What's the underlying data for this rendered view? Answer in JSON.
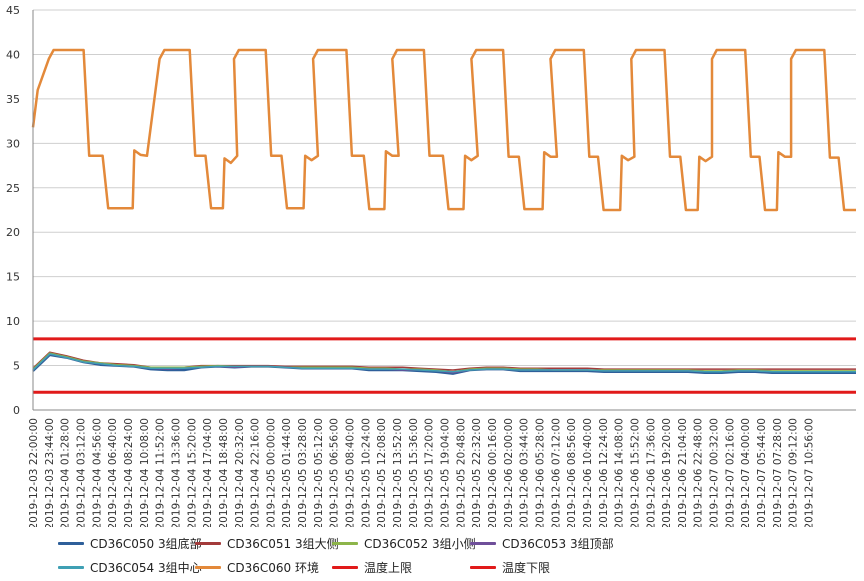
{
  "chart_data": {
    "type": "line",
    "title": "",
    "xlabel": "",
    "ylabel": "",
    "ylim": [
      0,
      45
    ],
    "yticks": [
      0,
      5,
      10,
      15,
      20,
      25,
      30,
      35,
      40,
      45
    ],
    "grid": true,
    "legend_position": "bottom",
    "x_tick_labels": [
      "2019-12-03 22:00:00",
      "2019-12-03 23:44:00",
      "2019-12-04 01:28:00",
      "2019-12-04 03:12:00",
      "2019-12-04 04:56:00",
      "2019-12-04 06:40:00",
      "2019-12-04 08:24:00",
      "2019-12-04 10:08:00",
      "2019-12-04 11:52:00",
      "2019-12-04 13:36:00",
      "2019-12-04 15:20:00",
      "2019-12-04 17:04:00",
      "2019-12-04 18:48:00",
      "2019-12-04 20:32:00",
      "2019-12-04 22:16:00",
      "2019-12-05 00:00:00",
      "2019-12-05 01:44:00",
      "2019-12-05 03:28:00",
      "2019-12-05 05:12:00",
      "2019-12-05 06:56:00",
      "2019-12-05 08:40:00",
      "2019-12-05 10:24:00",
      "2019-12-05 12:08:00",
      "2019-12-05 13:52:00",
      "2019-12-05 15:36:00",
      "2019-12-05 17:20:00",
      "2019-12-05 19:04:00",
      "2019-12-05 20:48:00",
      "2019-12-05 22:32:00",
      "2019-12-06 00:16:00",
      "2019-12-06 02:00:00",
      "2019-12-06 03:44:00",
      "2019-12-06 05:28:00",
      "2019-12-06 07:12:00",
      "2019-12-06 08:56:00",
      "2019-12-06 10:40:00",
      "2019-12-06 12:24:00",
      "2019-12-06 14:08:00",
      "2019-12-06 15:52:00",
      "2019-12-06 17:36:00",
      "2019-12-06 19:20:00",
      "2019-12-06 21:04:00",
      "2019-12-06 22:48:00",
      "2019-12-07 00:32:00",
      "2019-12-07 02:16:00",
      "2019-12-07 04:00:00",
      "2019-12-07 05:44:00",
      "2019-12-07 07:28:00",
      "2019-12-07 09:12:00",
      "2019-12-07 10:56:00"
    ],
    "series": [
      {
        "name": "CD36C050 3组底部",
        "color": "#2e5f9a",
        "width": 2.5,
        "values": [
          4.4,
          6.2,
          5.9,
          5.4,
          5.1,
          5.0,
          4.9,
          4.6,
          4.5,
          4.5,
          4.8,
          4.9,
          4.8,
          4.9,
          4.9,
          4.8,
          4.7,
          4.7,
          4.7,
          4.7,
          4.5,
          4.5,
          4.5,
          4.4,
          4.3,
          4.1,
          4.5,
          4.6,
          4.6,
          4.4,
          4.4,
          4.4,
          4.4,
          4.4,
          4.3,
          4.3,
          4.3,
          4.3,
          4.3,
          4.3,
          4.2,
          4.2,
          4.3,
          4.3,
          4.2,
          4.2,
          4.2,
          4.2,
          4.2,
          4.2
        ]
      },
      {
        "name": "CD36C051 3组大侧",
        "color": "#a33b3b",
        "width": 1.5,
        "values": [
          4.7,
          6.5,
          6.1,
          5.6,
          5.3,
          5.2,
          5.1,
          4.8,
          4.7,
          4.8,
          5.0,
          5.0,
          5.0,
          5.0,
          5.0,
          4.9,
          4.9,
          4.9,
          4.9,
          4.9,
          4.8,
          4.8,
          4.8,
          4.7,
          4.6,
          4.5,
          4.7,
          4.8,
          4.8,
          4.7,
          4.7,
          4.7,
          4.7,
          4.7,
          4.6,
          4.6,
          4.6,
          4.6,
          4.6,
          4.6,
          4.6,
          4.6,
          4.6,
          4.6,
          4.6,
          4.6,
          4.6,
          4.6,
          4.6,
          4.6
        ]
      },
      {
        "name": "CD36C052 3组小侧",
        "color": "#8db54a",
        "width": 1.5,
        "values": [
          4.6,
          6.4,
          6.0,
          5.5,
          5.3,
          5.1,
          5.0,
          4.8,
          4.8,
          4.8,
          4.9,
          5.0,
          4.9,
          4.9,
          4.9,
          4.8,
          4.8,
          4.8,
          4.8,
          4.8,
          4.7,
          4.7,
          4.6,
          4.6,
          4.5,
          4.3,
          4.6,
          4.7,
          4.7,
          4.6,
          4.6,
          4.5,
          4.5,
          4.5,
          4.5,
          4.5,
          4.5,
          4.5,
          4.5,
          4.5,
          4.4,
          4.4,
          4.5,
          4.5,
          4.4,
          4.4,
          4.4,
          4.4,
          4.4,
          4.4
        ]
      },
      {
        "name": "CD36C053 3组顶部",
        "color": "#6f4f9a",
        "width": 1.5,
        "values": [
          4.5,
          6.3,
          5.9,
          5.4,
          5.2,
          5.0,
          4.9,
          4.7,
          4.6,
          4.7,
          4.8,
          4.9,
          4.8,
          4.9,
          4.9,
          4.8,
          4.7,
          4.7,
          4.7,
          4.7,
          4.6,
          4.6,
          4.5,
          4.5,
          4.4,
          4.2,
          4.5,
          4.6,
          4.6,
          4.5,
          4.5,
          4.5,
          4.5,
          4.5,
          4.4,
          4.4,
          4.4,
          4.4,
          4.4,
          4.4,
          4.3,
          4.3,
          4.4,
          4.4,
          4.3,
          4.3,
          4.3,
          4.3,
          4.3,
          4.3
        ]
      },
      {
        "name": "CD36C054 3组中心",
        "color": "#3fa0b4",
        "width": 1.5,
        "values": [
          4.5,
          6.3,
          5.9,
          5.4,
          5.2,
          5.0,
          4.9,
          4.7,
          4.7,
          4.7,
          4.8,
          4.9,
          4.9,
          4.9,
          4.9,
          4.8,
          4.7,
          4.7,
          4.7,
          4.7,
          4.6,
          4.6,
          4.6,
          4.5,
          4.4,
          4.3,
          4.5,
          4.6,
          4.6,
          4.5,
          4.5,
          4.5,
          4.5,
          4.5,
          4.4,
          4.4,
          4.4,
          4.4,
          4.4,
          4.4,
          4.3,
          4.3,
          4.4,
          4.4,
          4.3,
          4.3,
          4.3,
          4.3,
          4.3,
          4.3
        ]
      },
      {
        "name": "CD36C060 环境",
        "color": "#e3893a",
        "width": 2.5,
        "cycles": [
          {
            "x_peak_start": 1.3,
            "x_peak_end": 3.2,
            "y_mid": 28.6,
            "x_low_start": 4.5,
            "y_low": 22.7,
            "x_low_end": 6.3,
            "y_step": 29.2
          },
          {
            "x_peak_start": 8.3,
            "x_peak_end": 9.9,
            "y_mid": 28.6,
            "x_low_start": 11.0,
            "y_low": 22.7,
            "x_low_end": 12.0,
            "y_step": 28.3
          },
          {
            "x_peak_start": 13.0,
            "x_peak_end": 14.7,
            "y_mid": 28.6,
            "x_low_start": 15.8,
            "y_low": 22.7,
            "x_low_end": 17.1,
            "y_step": 28.6
          },
          {
            "x_peak_start": 18.0,
            "x_peak_end": 19.8,
            "y_mid": 28.6,
            "x_low_start": 21.0,
            "y_low": 22.6,
            "x_low_end": 22.2,
            "y_step": 29.1
          },
          {
            "x_peak_start": 23.0,
            "x_peak_end": 24.7,
            "y_mid": 28.6,
            "x_low_start": 26.0,
            "y_low": 22.6,
            "x_low_end": 27.2,
            "y_step": 28.6
          },
          {
            "x_peak_start": 28.0,
            "x_peak_end": 29.7,
            "y_mid": 28.5,
            "x_low_start": 30.8,
            "y_low": 22.6,
            "x_low_end": 32.2,
            "y_step": 29.0
          },
          {
            "x_peak_start": 33.0,
            "x_peak_end": 34.8,
            "y_mid": 28.5,
            "x_low_start": 35.8,
            "y_low": 22.5,
            "x_low_end": 37.1,
            "y_step": 28.6
          },
          {
            "x_peak_start": 38.1,
            "x_peak_end": 39.9,
            "y_mid": 28.5,
            "x_low_start": 41.0,
            "y_low": 22.5,
            "x_low_end": 42.0,
            "y_step": 28.5
          },
          {
            "x_peak_start": 43.2,
            "x_peak_end": 45.0,
            "y_mid": 28.5,
            "x_low_start": 46.0,
            "y_low": 22.5,
            "x_low_end": 47.0,
            "y_step": 29.0
          },
          {
            "x_peak_start": 48.2,
            "x_peak_end": 50.0,
            "y_mid": 28.4,
            "x_low_start": 51.0,
            "y_low": 22.5,
            "x_low_end": 52.0,
            "y_step": 28.5
          }
        ],
        "y_start": 31.8,
        "y_peak": 40.5
      },
      {
        "name": "温度上限",
        "color": "#e11a1a",
        "width": 3,
        "values_const": 8
      },
      {
        "name": "温度下限",
        "color": "#e11a1a",
        "width": 3,
        "values_const": 2
      }
    ]
  }
}
